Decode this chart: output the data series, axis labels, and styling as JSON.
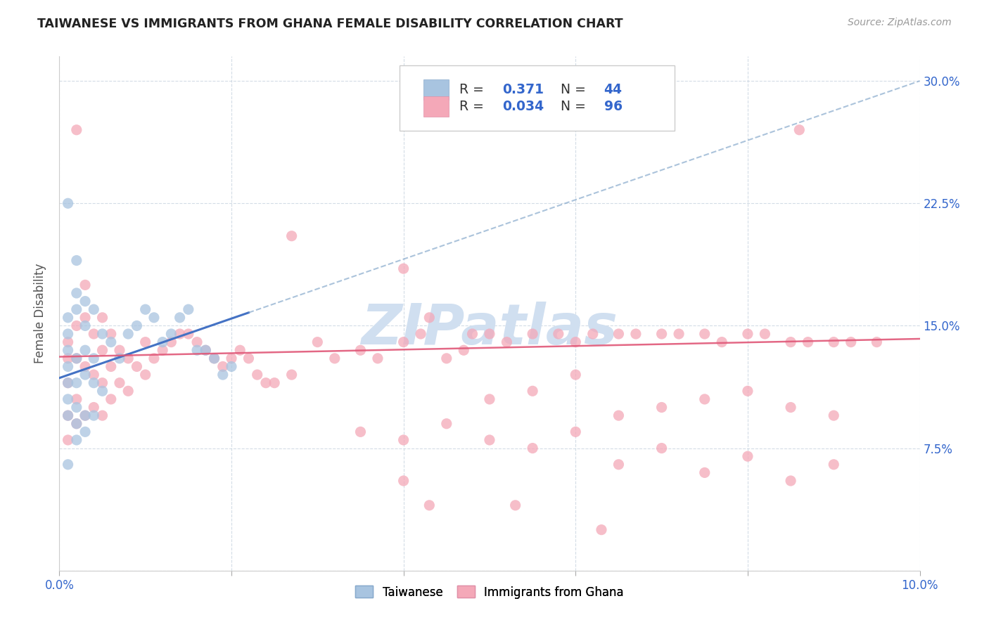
{
  "title": "TAIWANESE VS IMMIGRANTS FROM GHANA FEMALE DISABILITY CORRELATION CHART",
  "source": "Source: ZipAtlas.com",
  "ylabel": "Female Disability",
  "xlim": [
    0.0,
    0.1
  ],
  "ylim": [
    0.0,
    0.315
  ],
  "taiwanese_color": "#a8c4e0",
  "ghana_color": "#f4a8b8",
  "taiwanese_line_color": "#4472c4",
  "ghana_line_color": "#e05878",
  "watermark": "ZIPatlas",
  "watermark_color": "#d0dff0",
  "taiwanese_x": [
    0.001,
    0.001,
    0.001,
    0.001,
    0.001,
    0.001,
    0.001,
    0.001,
    0.002,
    0.002,
    0.002,
    0.002,
    0.002,
    0.002,
    0.002,
    0.003,
    0.003,
    0.003,
    0.003,
    0.003,
    0.004,
    0.004,
    0.004,
    0.005,
    0.005,
    0.006,
    0.007,
    0.008,
    0.009,
    0.01,
    0.011,
    0.012,
    0.013,
    0.014,
    0.015,
    0.016,
    0.017,
    0.018,
    0.019,
    0.02,
    0.001,
    0.002,
    0.003,
    0.004
  ],
  "taiwanese_y": [
    0.145,
    0.155,
    0.135,
    0.125,
    0.115,
    0.105,
    0.095,
    0.065,
    0.17,
    0.16,
    0.13,
    0.115,
    0.1,
    0.09,
    0.08,
    0.15,
    0.135,
    0.12,
    0.095,
    0.085,
    0.16,
    0.13,
    0.115,
    0.145,
    0.11,
    0.14,
    0.13,
    0.145,
    0.15,
    0.16,
    0.155,
    0.14,
    0.145,
    0.155,
    0.16,
    0.135,
    0.135,
    0.13,
    0.12,
    0.125,
    0.225,
    0.19,
    0.165,
    0.095
  ],
  "ghana_x": [
    0.001,
    0.001,
    0.001,
    0.001,
    0.001,
    0.002,
    0.002,
    0.002,
    0.002,
    0.003,
    0.003,
    0.003,
    0.003,
    0.004,
    0.004,
    0.004,
    0.005,
    0.005,
    0.005,
    0.005,
    0.006,
    0.006,
    0.006,
    0.007,
    0.007,
    0.008,
    0.008,
    0.009,
    0.01,
    0.01,
    0.011,
    0.012,
    0.013,
    0.014,
    0.015,
    0.016,
    0.017,
    0.018,
    0.019,
    0.02,
    0.021,
    0.022,
    0.023,
    0.024,
    0.025,
    0.027,
    0.03,
    0.032,
    0.035,
    0.037,
    0.04,
    0.042,
    0.043,
    0.045,
    0.047,
    0.048,
    0.05,
    0.052,
    0.055,
    0.058,
    0.06,
    0.062,
    0.065,
    0.067,
    0.07,
    0.072,
    0.075,
    0.077,
    0.08,
    0.082,
    0.085,
    0.087,
    0.09,
    0.092,
    0.095,
    0.05,
    0.055,
    0.06,
    0.065,
    0.07,
    0.075,
    0.08,
    0.085,
    0.09,
    0.04,
    0.05,
    0.06,
    0.07,
    0.08,
    0.09,
    0.035,
    0.045,
    0.055,
    0.065,
    0.075,
    0.085
  ],
  "ghana_y": [
    0.13,
    0.14,
    0.115,
    0.095,
    0.08,
    0.15,
    0.13,
    0.105,
    0.09,
    0.175,
    0.155,
    0.125,
    0.095,
    0.145,
    0.12,
    0.1,
    0.155,
    0.135,
    0.115,
    0.095,
    0.145,
    0.125,
    0.105,
    0.135,
    0.115,
    0.13,
    0.11,
    0.125,
    0.14,
    0.12,
    0.13,
    0.135,
    0.14,
    0.145,
    0.145,
    0.14,
    0.135,
    0.13,
    0.125,
    0.13,
    0.135,
    0.13,
    0.12,
    0.115,
    0.115,
    0.12,
    0.14,
    0.13,
    0.135,
    0.13,
    0.14,
    0.145,
    0.155,
    0.13,
    0.135,
    0.145,
    0.145,
    0.14,
    0.145,
    0.145,
    0.14,
    0.145,
    0.145,
    0.145,
    0.145,
    0.145,
    0.145,
    0.14,
    0.145,
    0.145,
    0.14,
    0.14,
    0.14,
    0.14,
    0.14,
    0.105,
    0.11,
    0.12,
    0.095,
    0.1,
    0.105,
    0.11,
    0.1,
    0.095,
    0.08,
    0.08,
    0.085,
    0.075,
    0.07,
    0.065,
    0.085,
    0.09,
    0.075,
    0.065,
    0.06,
    0.055
  ],
  "ghana_extra_x": [
    0.002,
    0.027,
    0.04,
    0.086,
    0.04,
    0.043,
    0.053,
    0.063
  ],
  "ghana_extra_y": [
    0.27,
    0.205,
    0.185,
    0.27,
    0.055,
    0.04,
    0.04,
    0.025
  ],
  "tw_line_x0": 0.0,
  "tw_line_y0": 0.118,
  "tw_line_x1": 0.1,
  "tw_line_y1": 0.3,
  "gh_line_x0": 0.0,
  "gh_line_y0": 0.131,
  "gh_line_x1": 0.1,
  "gh_line_y1": 0.142
}
